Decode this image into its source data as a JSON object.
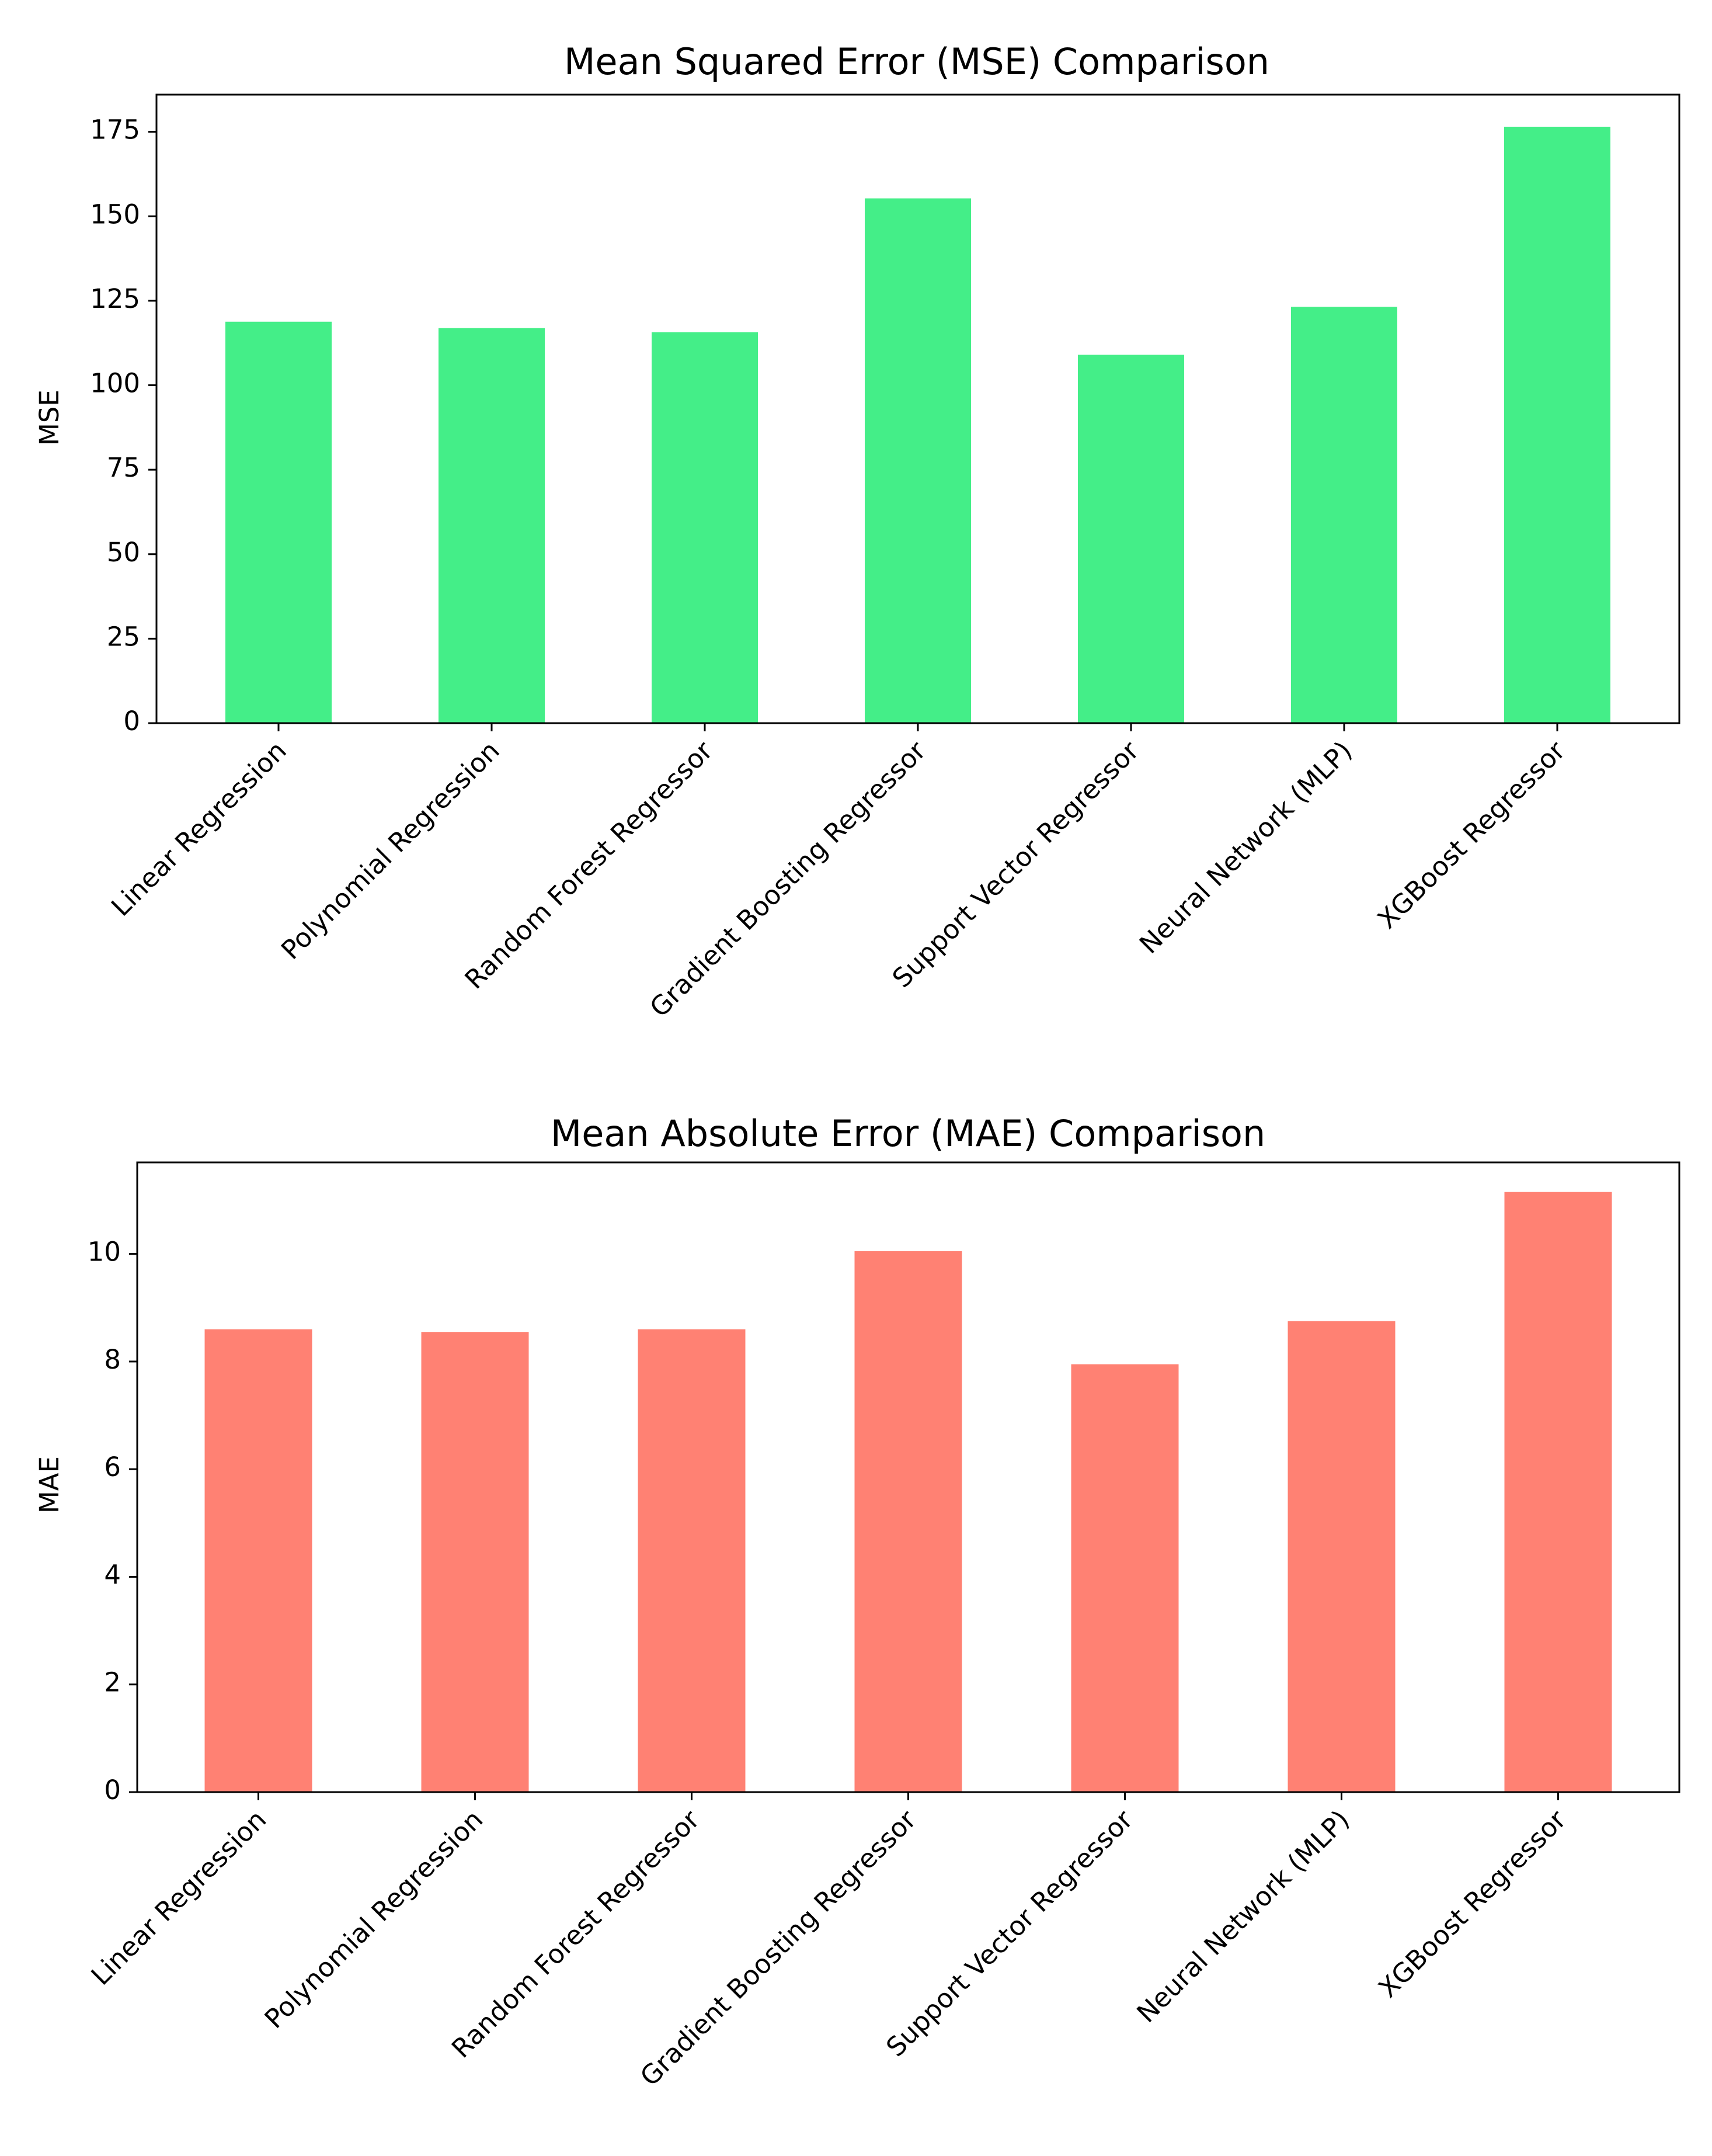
{
  "chart_data": [
    {
      "type": "bar",
      "title": "Mean Squared Error (MSE) Comparison",
      "xlabel": "",
      "ylabel": "MSE",
      "categories": [
        "Linear Regression",
        "Polynomial Regression",
        "Random Forest Regressor",
        "Gradient Boosting Regressor",
        "Support Vector Regressor",
        "Neural Network (MLP)",
        "XGBoost Regressor"
      ],
      "values": [
        118.8,
        116.9,
        115.7,
        155.3,
        109.0,
        123.2,
        176.5
      ],
      "ylim": [
        0,
        186
      ],
      "yticks": [
        0,
        25,
        50,
        75,
        100,
        125,
        150,
        175
      ],
      "color": "#44ee88",
      "grid": false
    },
    {
      "type": "bar",
      "title": "Mean Absolute Error (MAE) Comparison",
      "xlabel": "",
      "ylabel": "MAE",
      "categories": [
        "Linear Regression",
        "Polynomial Regression",
        "Random Forest Regressor",
        "Gradient Boosting Regressor",
        "Support Vector Regressor",
        "Neural Network (MLP)",
        "XGBoost Regressor"
      ],
      "values": [
        8.6,
        8.55,
        8.6,
        10.05,
        7.95,
        8.75,
        11.15
      ],
      "ylim": [
        0,
        11.7
      ],
      "yticks": [
        0,
        2,
        4,
        6,
        8,
        10
      ],
      "color": "#ff8173",
      "grid": false
    }
  ]
}
